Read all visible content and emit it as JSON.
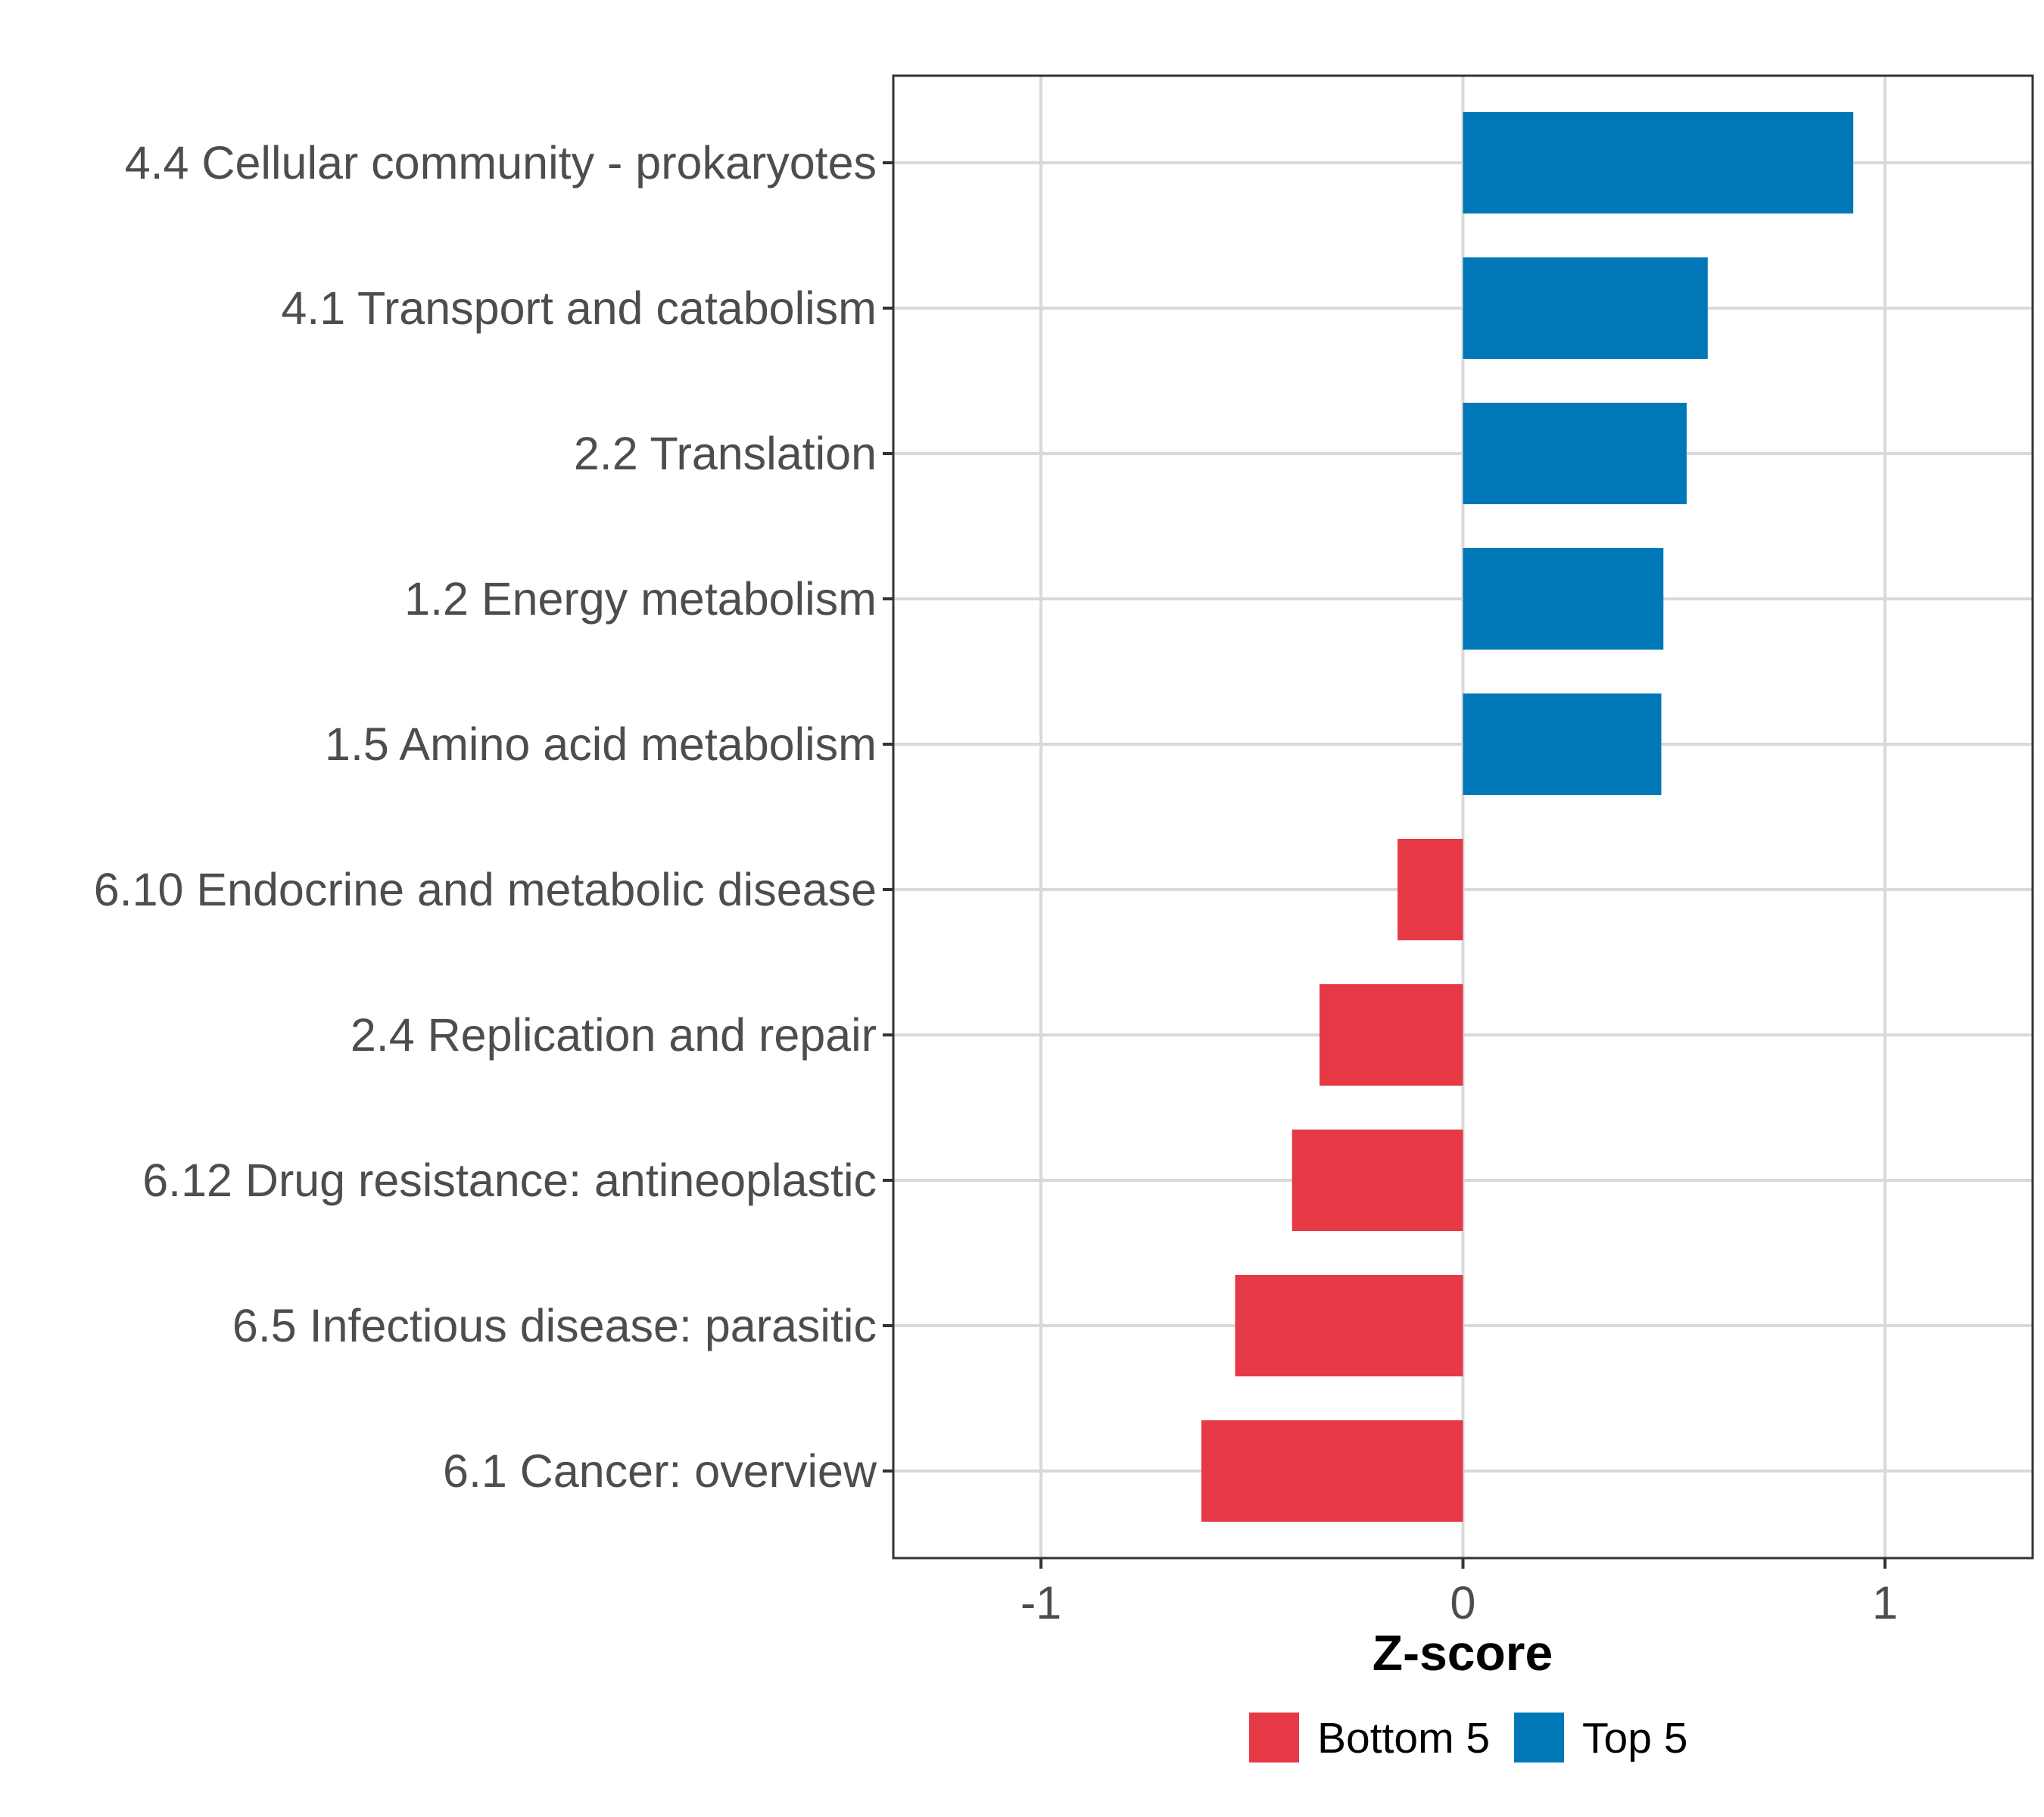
{
  "chart_data": {
    "type": "bar",
    "orientation": "horizontal",
    "xlabel": "Z-score",
    "xlim": [
      -1.35,
      1.35
    ],
    "xticks": [
      -1,
      0,
      1
    ],
    "xtick_labels": [
      "-1",
      "0",
      "1"
    ],
    "categories": [
      "4.4 Cellular community - prokaryotes",
      "4.1 Transport and catabolism",
      "2.2 Translation",
      "1.2 Energy metabolism",
      "1.5 Amino acid metabolism",
      "6.10 Endocrine and metabolic disease",
      "2.4 Replication and repair",
      "6.12 Drug resistance: antineoplastic",
      "6.5 Infectious disease: parasitic",
      "6.1 Cancer: overview"
    ],
    "values": [
      0.925,
      0.58,
      0.53,
      0.475,
      0.47,
      -0.155,
      -0.34,
      -0.405,
      -0.54,
      -0.62
    ],
    "groups": [
      "Top 5",
      "Top 5",
      "Top 5",
      "Top 5",
      "Top 5",
      "Bottom 5",
      "Bottom 5",
      "Bottom 5",
      "Bottom 5",
      "Bottom 5"
    ],
    "legend": [
      {
        "label": "Bottom 5",
        "color": "#e63946"
      },
      {
        "label": "Top 5",
        "color": "#0077b6"
      }
    ],
    "legend_position": "bottom",
    "grid": true
  }
}
